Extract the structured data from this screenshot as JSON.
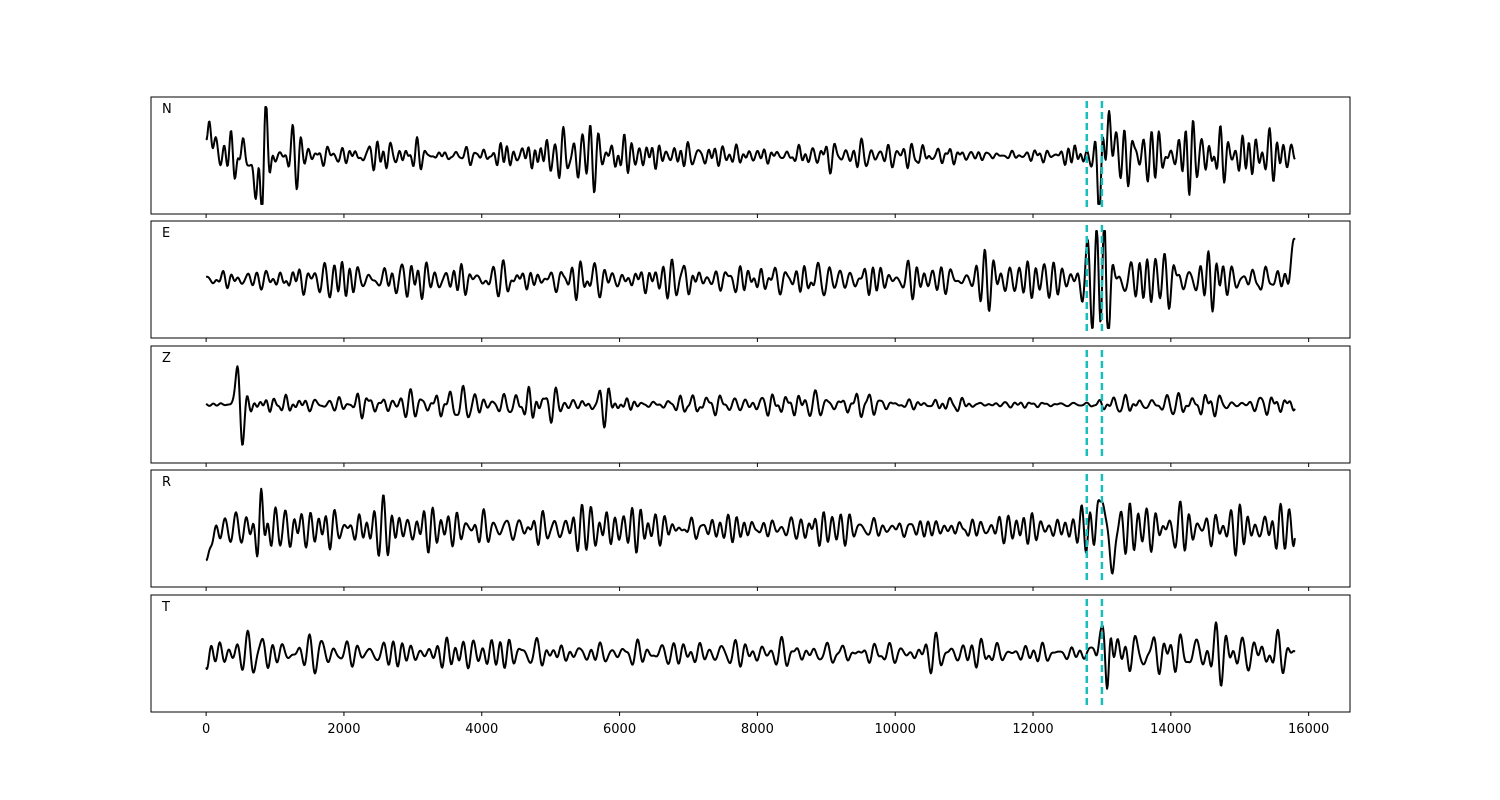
{
  "chart_data": {
    "type": "line",
    "xlim": [
      -800,
      16600
    ],
    "x_ticks": [
      0,
      2000,
      4000,
      6000,
      8000,
      10000,
      12000,
      14000,
      16000
    ],
    "x_tick_labels": [
      "0",
      "2000",
      "4000",
      "6000",
      "8000",
      "10000",
      "12000",
      "14000",
      "16000"
    ],
    "x_range": [
      0,
      15800
    ],
    "markers": {
      "color": "#17BEBB",
      "x": [
        12780,
        13000
      ]
    },
    "trace_color": "#000000",
    "grid": false,
    "panels": [
      {
        "name": "N",
        "label": "N",
        "seed": 11,
        "ylim": [
          -1,
          1
        ],
        "envelope": [
          [
            0,
            0.75
          ],
          [
            300,
            0.55
          ],
          [
            650,
            1.0
          ],
          [
            850,
            1.0
          ],
          [
            1200,
            0.5
          ],
          [
            2000,
            0.3
          ],
          [
            2900,
            0.55
          ],
          [
            3500,
            0.4
          ],
          [
            4500,
            0.5
          ],
          [
            5400,
            0.8
          ],
          [
            5700,
            0.7
          ],
          [
            6400,
            0.4
          ],
          [
            7500,
            0.25
          ],
          [
            8500,
            0.22
          ],
          [
            9500,
            0.35
          ],
          [
            10500,
            0.3
          ],
          [
            11500,
            0.2
          ],
          [
            12300,
            0.22
          ],
          [
            12800,
            0.5
          ],
          [
            13000,
            1.0
          ],
          [
            13200,
            0.95
          ],
          [
            13800,
            0.6
          ],
          [
            14600,
            0.8
          ],
          [
            15000,
            0.75
          ],
          [
            15800,
            0.55
          ]
        ],
        "events": [
          [
            0,
            0.75,
            120
          ],
          [
            12950,
            -0.9,
            40
          ],
          [
            13100,
            0.9,
            45
          ],
          [
            720,
            -0.95,
            60
          ]
        ]
      },
      {
        "name": "E",
        "label": "E",
        "seed": 23,
        "ylim": [
          -1,
          1
        ],
        "envelope": [
          [
            0,
            0.25
          ],
          [
            900,
            0.3
          ],
          [
            1200,
            0.55
          ],
          [
            2000,
            0.5
          ],
          [
            2600,
            0.55
          ],
          [
            3700,
            0.5
          ],
          [
            4500,
            0.45
          ],
          [
            5000,
            0.5
          ],
          [
            6000,
            0.5
          ],
          [
            7000,
            0.45
          ],
          [
            8000,
            0.45
          ],
          [
            9000,
            0.55
          ],
          [
            9500,
            0.35
          ],
          [
            10500,
            0.35
          ],
          [
            11500,
            0.4
          ],
          [
            12600,
            0.45
          ],
          [
            12900,
            0.7
          ],
          [
            13050,
            1.0
          ],
          [
            13300,
            0.7
          ],
          [
            14000,
            0.6
          ],
          [
            14600,
            0.6
          ],
          [
            15500,
            0.5
          ],
          [
            15800,
            0.8
          ]
        ],
        "events": [
          [
            13080,
            -0.95,
            40
          ],
          [
            13030,
            0.75,
            40
          ],
          [
            15780,
            0.7,
            60
          ]
        ]
      },
      {
        "name": "Z",
        "label": "Z",
        "seed": 37,
        "ylim": [
          -1,
          1
        ],
        "envelope": [
          [
            0,
            0.05
          ],
          [
            350,
            0.05
          ],
          [
            450,
            1.0
          ],
          [
            700,
            0.45
          ],
          [
            1000,
            0.25
          ],
          [
            2000,
            0.2
          ],
          [
            3000,
            0.28
          ],
          [
            4500,
            0.35
          ],
          [
            5300,
            0.4
          ],
          [
            6500,
            0.25
          ],
          [
            8000,
            0.22
          ],
          [
            9000,
            0.3
          ],
          [
            10000,
            0.2
          ],
          [
            11000,
            0.15
          ],
          [
            12000,
            0.07
          ],
          [
            12700,
            0.06
          ],
          [
            13000,
            0.12
          ],
          [
            13500,
            0.2
          ],
          [
            14500,
            0.25
          ],
          [
            15800,
            0.2
          ]
        ],
        "events": [
          [
            460,
            1.0,
            45
          ],
          [
            520,
            -0.9,
            45
          ]
        ]
      },
      {
        "name": "R",
        "label": "R",
        "seed": 53,
        "ylim": [
          -1,
          1
        ],
        "envelope": [
          [
            0,
            0.3
          ],
          [
            500,
            0.45
          ],
          [
            700,
            0.9
          ],
          [
            800,
            1.0
          ],
          [
            1100,
            0.5
          ],
          [
            2000,
            0.4
          ],
          [
            2900,
            0.55
          ],
          [
            4000,
            0.45
          ],
          [
            5400,
            0.6
          ],
          [
            6200,
            0.5
          ],
          [
            7000,
            0.35
          ],
          [
            8000,
            0.35
          ],
          [
            9000,
            0.45
          ],
          [
            10500,
            0.35
          ],
          [
            11500,
            0.3
          ],
          [
            12500,
            0.3
          ],
          [
            12850,
            0.55
          ],
          [
            13000,
            1.0
          ],
          [
            13250,
            0.8
          ],
          [
            14000,
            0.6
          ],
          [
            14800,
            0.75
          ],
          [
            15800,
            0.55
          ]
        ],
        "events": [
          [
            790,
            1.0,
            40
          ],
          [
            770,
            -0.9,
            40
          ],
          [
            30,
            -0.6,
            80
          ],
          [
            13000,
            0.95,
            40
          ],
          [
            13150,
            -0.95,
            45
          ]
        ]
      },
      {
        "name": "T",
        "label": "T",
        "seed": 71,
        "ylim": [
          -1,
          1
        ],
        "envelope": [
          [
            0,
            0.35
          ],
          [
            800,
            0.45
          ],
          [
            1200,
            0.45
          ],
          [
            2000,
            0.4
          ],
          [
            3000,
            0.45
          ],
          [
            4000,
            0.45
          ],
          [
            5000,
            0.5
          ],
          [
            6000,
            0.3
          ],
          [
            7000,
            0.25
          ],
          [
            8000,
            0.25
          ],
          [
            9000,
            0.35
          ],
          [
            10000,
            0.3
          ],
          [
            11000,
            0.35
          ],
          [
            12000,
            0.25
          ],
          [
            12800,
            0.3
          ],
          [
            12950,
            0.8
          ],
          [
            13060,
            1.0
          ],
          [
            13300,
            0.7
          ],
          [
            14000,
            0.5
          ],
          [
            15000,
            0.5
          ],
          [
            15800,
            0.45
          ]
        ],
        "events": [
          [
            12960,
            0.7,
            40
          ],
          [
            13080,
            -0.95,
            40
          ],
          [
            13120,
            0.8,
            40
          ]
        ]
      }
    ]
  }
}
